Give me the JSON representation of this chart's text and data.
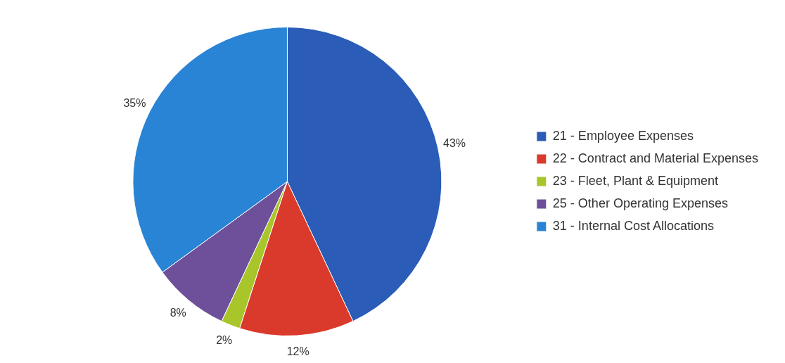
{
  "chart_data": {
    "type": "pie",
    "categories": [
      "21 - Employee Expenses",
      "22 - Contract and Material Expenses",
      "23 - Fleet, Plant & Equipment",
      "25 - Other Operating Expenses",
      "31 - Internal Cost Allocations"
    ],
    "values": [
      43,
      12,
      2,
      8,
      35
    ],
    "colors": [
      "#2a5cb8",
      "#d93a2b",
      "#a8c52a",
      "#6e4f9a",
      "#2a84d6"
    ],
    "value_labels": [
      "43%",
      "12%",
      "2%",
      "8%",
      "35%"
    ],
    "legend": "right"
  }
}
